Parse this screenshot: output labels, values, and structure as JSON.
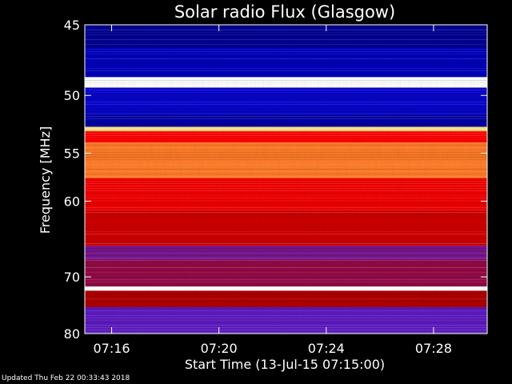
{
  "chart_data": {
    "type": "heatmap",
    "title": "Solar radio Flux (Glasgow)",
    "xlabel": "Start Time (13-Jul-15 07:15:00)",
    "ylabel": "Frequency [MHz]",
    "xlim": [
      "07:15:00",
      "07:30:00"
    ],
    "ylim": [
      45,
      80
    ],
    "x_ticks": [
      "07:16",
      "07:20",
      "07:24",
      "07:28"
    ],
    "y_ticks": [
      45,
      50,
      55,
      60,
      70,
      80
    ],
    "colormap": [
      "#000040",
      "#0000c0",
      "#2a1aff",
      "#6a1ab0",
      "#b00000",
      "#ff0000",
      "#ff6020",
      "#ffd040",
      "#ffffff"
    ],
    "bands": [
      {
        "freq_range": [
          45.0,
          46.5
        ],
        "intensity": 0.08
      },
      {
        "freq_range": [
          46.5,
          48.6
        ],
        "intensity": 0.12
      },
      {
        "freq_range": [
          48.6,
          49.4
        ],
        "intensity": 1.0
      },
      {
        "freq_range": [
          49.4,
          51.5
        ],
        "intensity": 0.15
      },
      {
        "freq_range": [
          51.5,
          52.6
        ],
        "intensity": 0.1
      },
      {
        "freq_range": [
          52.6,
          53.0
        ],
        "intensity": 0.92
      },
      {
        "freq_range": [
          53.0,
          54.0
        ],
        "intensity": 0.62
      },
      {
        "freq_range": [
          54.0,
          57.5
        ],
        "intensity": 0.78
      },
      {
        "freq_range": [
          57.5,
          61.0
        ],
        "intensity": 0.6
      },
      {
        "freq_range": [
          61.0,
          65.5
        ],
        "intensity": 0.55
      },
      {
        "freq_range": [
          65.5,
          67.5
        ],
        "intensity": 0.4
      },
      {
        "freq_range": [
          67.5,
          71.5
        ],
        "intensity": 0.45
      },
      {
        "freq_range": [
          71.5,
          72.2
        ],
        "intensity": 1.0
      },
      {
        "freq_range": [
          72.2,
          75.0
        ],
        "intensity": 0.5
      },
      {
        "freq_range": [
          75.0,
          80.0
        ],
        "intensity": 0.35
      }
    ],
    "grid": false
  },
  "footer": {
    "updated": "Updated Thu Feb 22 00:33:43 2018"
  }
}
